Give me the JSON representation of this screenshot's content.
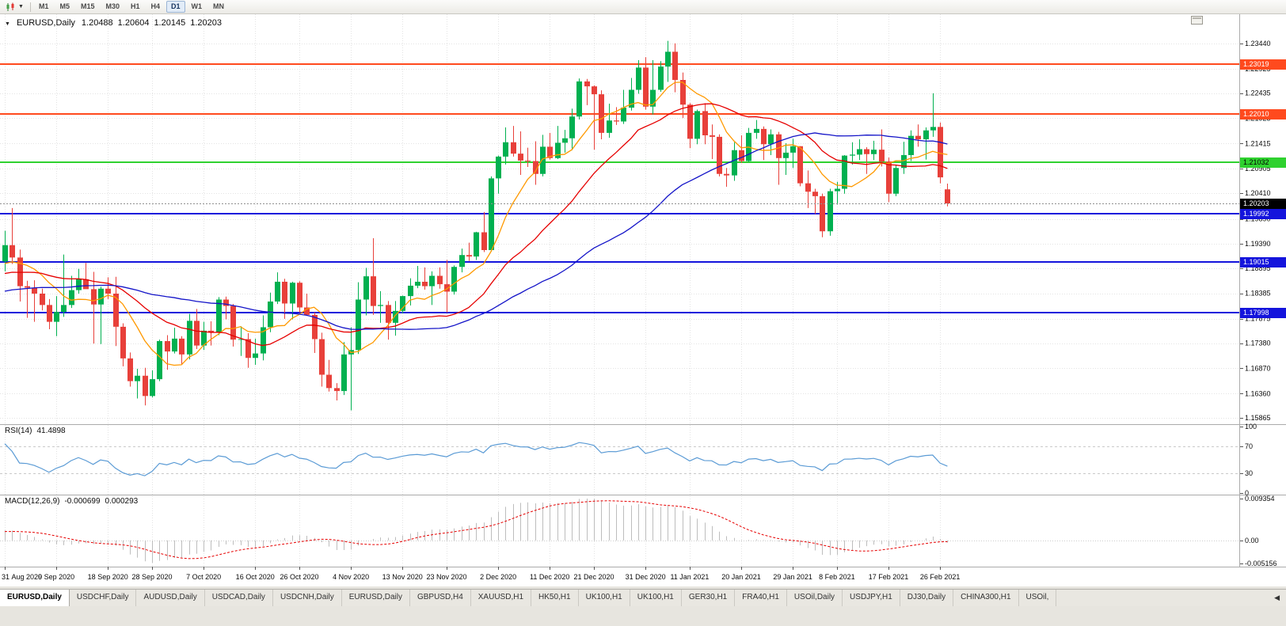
{
  "toolbar": {
    "timeframes": [
      "M1",
      "M5",
      "M15",
      "M30",
      "H1",
      "H4",
      "D1",
      "W1",
      "MN"
    ],
    "active_timeframe": "D1"
  },
  "chart": {
    "title": {
      "symbol": "EURUSD,Daily",
      "open": "1.20488",
      "high": "1.20604",
      "low": "1.20145",
      "close": "1.20203"
    },
    "price_axis_ticks": [
      "1.23440",
      "1.22925",
      "1.22435",
      "1.21925",
      "1.21415",
      "1.20905",
      "1.20410",
      "1.19890",
      "1.19390",
      "1.18895",
      "1.18385",
      "1.17875",
      "1.17380",
      "1.16870",
      "1.16360",
      "1.15865"
    ],
    "levels": [
      {
        "price": 1.23019,
        "label": "1.23019",
        "line_color": "#FF4A1E",
        "label_bg": "#FF4A1E",
        "label_text": "#FFFFFF"
      },
      {
        "price": 1.2201,
        "label": "1.22010",
        "line_color": "#FF4A1E",
        "label_bg": "#FF4A1E",
        "label_text": "#FFFFFF"
      },
      {
        "price": 1.21032,
        "label": "1.21032",
        "line_color": "#2FD12F",
        "label_bg": "#2FD12F",
        "label_text": "#000000"
      },
      {
        "price": 1.19992,
        "label": "1.19992",
        "line_color": "#1414DC",
        "label_bg": "#1414DC",
        "label_text": "#FFFFFF"
      },
      {
        "price": 1.19015,
        "label": "1.19015",
        "line_color": "#1414DC",
        "label_bg": "#1414DC",
        "label_text": "#FFFFFF"
      },
      {
        "price": 1.17998,
        "label": "1.17998",
        "line_color": "#1414DC",
        "label_bg": "#1414DC",
        "label_text": "#FFFFFF"
      }
    ],
    "current_price": {
      "value": 1.20203,
      "label": "1.20203",
      "label_bg": "#000000",
      "label_text": "#FFFFFF"
    },
    "x_tick_indices": [
      0,
      7,
      14,
      20,
      27,
      34,
      40,
      47,
      54,
      60,
      67,
      74,
      80,
      87,
      93,
      100,
      107,
      113,
      120,
      127
    ],
    "colors": {
      "bull": "#00B050",
      "bear": "#E8403A",
      "grid": "#E3E3E3",
      "ma_fast": "#FF9900",
      "ma_medium": "#E60000",
      "ma_slow": "#1414C8"
    }
  },
  "chart_data": {
    "type": "candlestick",
    "symbol": "EURUSD",
    "timeframe": "Daily",
    "columns": [
      "date",
      "open",
      "high",
      "low",
      "close"
    ],
    "y_range": [
      1.1574,
      1.239
    ],
    "candles": [
      [
        "31 Aug 2020",
        1.1903,
        1.1965,
        1.1883,
        1.1936
      ],
      [
        "1 Sep 2020",
        1.1936,
        1.2011,
        1.1898,
        1.1911
      ],
      [
        "2 Sep 2020",
        1.1911,
        1.1927,
        1.1822,
        1.1853
      ],
      [
        "3 Sep 2020",
        1.1853,
        1.1864,
        1.1789,
        1.185
      ],
      [
        "4 Sep 2020",
        1.185,
        1.1865,
        1.1781,
        1.1838
      ],
      [
        "7 Sep 2020",
        1.1838,
        1.1848,
        1.1804,
        1.1815
      ],
      [
        "8 Sep 2020",
        1.1815,
        1.1827,
        1.1766,
        1.1781
      ],
      [
        "9 Sep 2020",
        1.1781,
        1.1833,
        1.1752,
        1.1801
      ],
      [
        "10 Sep 2020",
        1.1801,
        1.1917,
        1.1791,
        1.1815
      ],
      [
        "11 Sep 2020",
        1.1815,
        1.1874,
        1.1809,
        1.1845
      ],
      [
        "14 Sep 2020",
        1.1845,
        1.1888,
        1.1838,
        1.1867
      ],
      [
        "15 Sep 2020",
        1.1867,
        1.19,
        1.185,
        1.1847
      ],
      [
        "16 Sep 2020",
        1.1847,
        1.1882,
        1.1737,
        1.1816
      ],
      [
        "17 Sep 2020",
        1.1816,
        1.1852,
        1.1736,
        1.1848
      ],
      [
        "18 Sep 2020",
        1.1848,
        1.1871,
        1.1827,
        1.1838
      ],
      [
        "21 Sep 2020",
        1.1838,
        1.1872,
        1.1732,
        1.1771
      ],
      [
        "22 Sep 2020",
        1.1771,
        1.1778,
        1.1691,
        1.1707
      ],
      [
        "23 Sep 2020",
        1.1707,
        1.1719,
        1.165,
        1.1661
      ],
      [
        "24 Sep 2020",
        1.1661,
        1.1686,
        1.1626,
        1.1672
      ],
      [
        "25 Sep 2020",
        1.1672,
        1.1688,
        1.1612,
        1.1631
      ],
      [
        "28 Sep 2020",
        1.1631,
        1.1683,
        1.1628,
        1.1665
      ],
      [
        "29 Sep 2020",
        1.1665,
        1.1745,
        1.1661,
        1.1742
      ],
      [
        "30 Sep 2020",
        1.1742,
        1.1754,
        1.1684,
        1.1721
      ],
      [
        "1 Oct 2020",
        1.1721,
        1.1769,
        1.1717,
        1.1747
      ],
      [
        "2 Oct 2020",
        1.1747,
        1.1752,
        1.1695,
        1.1715
      ],
      [
        "5 Oct 2020",
        1.1715,
        1.1797,
        1.1705,
        1.1783
      ],
      [
        "6 Oct 2020",
        1.1783,
        1.1807,
        1.1726,
        1.1733
      ],
      [
        "7 Oct 2020",
        1.1733,
        1.1781,
        1.1724,
        1.1763
      ],
      [
        "8 Oct 2020",
        1.1763,
        1.1782,
        1.1733,
        1.176
      ],
      [
        "9 Oct 2020",
        1.176,
        1.1831,
        1.1754,
        1.1826
      ],
      [
        "12 Oct 2020",
        1.1826,
        1.1832,
        1.1786,
        1.1813
      ],
      [
        "13 Oct 2020",
        1.1813,
        1.1817,
        1.1731,
        1.1745
      ],
      [
        "14 Oct 2020",
        1.1745,
        1.1772,
        1.1712,
        1.1746
      ],
      [
        "15 Oct 2020",
        1.1746,
        1.1758,
        1.1688,
        1.1708
      ],
      [
        "16 Oct 2020",
        1.1708,
        1.1747,
        1.1694,
        1.1717
      ],
      [
        "19 Oct 2020",
        1.1717,
        1.1794,
        1.1703,
        1.177
      ],
      [
        "20 Oct 2020",
        1.177,
        1.184,
        1.176,
        1.1822
      ],
      [
        "21 Oct 2020",
        1.1822,
        1.1881,
        1.1817,
        1.1862
      ],
      [
        "22 Oct 2020",
        1.1862,
        1.1868,
        1.1787,
        1.1818
      ],
      [
        "23 Oct 2020",
        1.1818,
        1.1862,
        1.1786,
        1.186
      ],
      [
        "26 Oct 2020",
        1.186,
        1.1863,
        1.18,
        1.181
      ],
      [
        "27 Oct 2020",
        1.181,
        1.1838,
        1.1793,
        1.1795
      ],
      [
        "28 Oct 2020",
        1.1795,
        1.18,
        1.1718,
        1.1746
      ],
      [
        "29 Oct 2020",
        1.1746,
        1.1759,
        1.165,
        1.1674
      ],
      [
        "30 Oct 2020",
        1.1674,
        1.1704,
        1.164,
        1.1647
      ],
      [
        "2 Nov 2020",
        1.1647,
        1.1657,
        1.1622,
        1.1641
      ],
      [
        "3 Nov 2020",
        1.1641,
        1.174,
        1.1633,
        1.1715
      ],
      [
        "4 Nov 2020",
        1.1715,
        1.177,
        1.1602,
        1.1724
      ],
      [
        "5 Nov 2020",
        1.1724,
        1.1861,
        1.1716,
        1.1826
      ],
      [
        "6 Nov 2020",
        1.1826,
        1.189,
        1.1794,
        1.1873
      ],
      [
        "9 Nov 2020",
        1.1873,
        1.195,
        1.1795,
        1.1813
      ],
      [
        "10 Nov 2020",
        1.1813,
        1.1843,
        1.1779,
        1.1815
      ],
      [
        "11 Nov 2020",
        1.1815,
        1.1823,
        1.1745,
        1.1779
      ],
      [
        "12 Nov 2020",
        1.1779,
        1.1823,
        1.1753,
        1.1803
      ],
      [
        "13 Nov 2020",
        1.1803,
        1.1834,
        1.1798,
        1.1833
      ],
      [
        "16 Nov 2020",
        1.1833,
        1.1869,
        1.1814,
        1.1854
      ],
      [
        "17 Nov 2020",
        1.1854,
        1.1894,
        1.1849,
        1.1862
      ],
      [
        "18 Nov 2020",
        1.1862,
        1.1891,
        1.1846,
        1.1853
      ],
      [
        "19 Nov 2020",
        1.1853,
        1.1883,
        1.1815,
        1.1874
      ],
      [
        "20 Nov 2020",
        1.1874,
        1.1891,
        1.1848,
        1.1857
      ],
      [
        "23 Nov 2020",
        1.1857,
        1.1906,
        1.18,
        1.1842
      ],
      [
        "24 Nov 2020",
        1.1842,
        1.1895,
        1.1836,
        1.1892
      ],
      [
        "25 Nov 2020",
        1.1892,
        1.1929,
        1.1881,
        1.1916
      ],
      [
        "26 Nov 2020",
        1.1916,
        1.1941,
        1.1904,
        1.1913
      ],
      [
        "27 Nov 2020",
        1.1913,
        1.1963,
        1.1906,
        1.1962
      ],
      [
        "30 Nov 2020",
        1.1962,
        1.2003,
        1.1922,
        1.1926
      ],
      [
        "1 Dec 2020",
        1.1926,
        1.2075,
        1.1923,
        1.2071
      ],
      [
        "2 Dec 2020",
        1.2071,
        1.2117,
        1.204,
        1.2115
      ],
      [
        "3 Dec 2020",
        1.2115,
        1.2174,
        1.2099,
        1.2144
      ],
      [
        "4 Dec 2020",
        1.2144,
        1.2177,
        1.2115,
        1.2121
      ],
      [
        "7 Dec 2020",
        1.2121,
        1.2166,
        1.2078,
        1.2107
      ],
      [
        "8 Dec 2020",
        1.2107,
        1.2133,
        1.2094,
        1.2106
      ],
      [
        "9 Dec 2020",
        1.2106,
        1.2146,
        1.2058,
        1.208
      ],
      [
        "10 Dec 2020",
        1.208,
        1.2159,
        1.2075,
        1.2135
      ],
      [
        "11 Dec 2020",
        1.2135,
        1.2163,
        1.2109,
        1.2112
      ],
      [
        "14 Dec 2020",
        1.2112,
        1.2177,
        1.211,
        1.2143
      ],
      [
        "15 Dec 2020",
        1.2143,
        1.2169,
        1.2123,
        1.2152
      ],
      [
        "16 Dec 2020",
        1.2152,
        1.2212,
        1.2128,
        1.2196
      ],
      [
        "17 Dec 2020",
        1.2196,
        1.2273,
        1.219,
        1.2267
      ],
      [
        "18 Dec 2020",
        1.2267,
        1.2272,
        1.2219,
        1.2257
      ],
      [
        "21 Dec 2020",
        1.2257,
        1.2259,
        1.2129,
        1.2241
      ],
      [
        "22 Dec 2020",
        1.2241,
        1.2249,
        1.215,
        1.2163
      ],
      [
        "23 Dec 2020",
        1.2163,
        1.2222,
        1.2153,
        1.2188
      ],
      [
        "24 Dec 2020",
        1.2188,
        1.2215,
        1.2179,
        1.2186
      ],
      [
        "28 Dec 2020",
        1.2186,
        1.225,
        1.2181,
        1.2214
      ],
      [
        "29 Dec 2020",
        1.2214,
        1.2274,
        1.2208,
        1.225
      ],
      [
        "30 Dec 2020",
        1.225,
        1.231,
        1.2242,
        1.2295
      ],
      [
        "31 Dec 2020",
        1.2295,
        1.2316,
        1.221,
        1.2216
      ],
      [
        "4 Jan 2021",
        1.2216,
        1.231,
        1.22,
        1.225
      ],
      [
        "5 Jan 2021",
        1.225,
        1.2308,
        1.2246,
        1.2297
      ],
      [
        "6 Jan 2021",
        1.2297,
        1.2349,
        1.2266,
        1.2327
      ],
      [
        "7 Jan 2021",
        1.2327,
        1.2344,
        1.2245,
        1.227
      ],
      [
        "8 Jan 2021",
        1.227,
        1.2285,
        1.2193,
        1.222
      ],
      [
        "11 Jan 2021",
        1.222,
        1.2223,
        1.2132,
        1.2151
      ],
      [
        "12 Jan 2021",
        1.2151,
        1.221,
        1.214,
        1.2207
      ],
      [
        "13 Jan 2021",
        1.2207,
        1.2223,
        1.214,
        1.2158
      ],
      [
        "14 Jan 2021",
        1.2158,
        1.218,
        1.211,
        1.2155
      ],
      [
        "15 Jan 2021",
        1.2155,
        1.216,
        1.2075,
        1.208
      ],
      [
        "18 Jan 2021",
        1.208,
        1.2092,
        1.2054,
        1.2077
      ],
      [
        "19 Jan 2021",
        1.2077,
        1.2144,
        1.2066,
        1.2128
      ],
      [
        "20 Jan 2021",
        1.2128,
        1.2158,
        1.2102,
        1.2106
      ],
      [
        "21 Jan 2021",
        1.2106,
        1.2173,
        1.2104,
        1.2163
      ],
      [
        "22 Jan 2021",
        1.2163,
        1.2189,
        1.2151,
        1.2171
      ],
      [
        "25 Jan 2021",
        1.2171,
        1.2176,
        1.2108,
        1.214
      ],
      [
        "26 Jan 2021",
        1.214,
        1.217,
        1.2118,
        1.216
      ],
      [
        "27 Jan 2021",
        1.216,
        1.2165,
        1.2058,
        1.2112
      ],
      [
        "28 Jan 2021",
        1.2112,
        1.2142,
        1.2078,
        1.2123
      ],
      [
        "29 Jan 2021",
        1.2123,
        1.2151,
        1.2092,
        1.2136
      ],
      [
        "1 Feb 2021",
        1.2136,
        1.2136,
        1.2055,
        1.2061
      ],
      [
        "2 Feb 2021",
        1.2061,
        1.2087,
        1.2011,
        1.2044
      ],
      [
        "3 Feb 2021",
        1.2044,
        1.205,
        1.1999,
        1.2035
      ],
      [
        "4 Feb 2021",
        1.2035,
        1.204,
        1.1952,
        1.1964
      ],
      [
        "5 Feb 2021",
        1.1964,
        1.205,
        1.1955,
        1.2045
      ],
      [
        "8 Feb 2021",
        1.2045,
        1.2064,
        1.2018,
        1.205
      ],
      [
        "9 Feb 2021",
        1.205,
        1.2118,
        1.204,
        1.2117
      ],
      [
        "10 Feb 2021",
        1.2117,
        1.2144,
        1.2099,
        1.2119
      ],
      [
        "11 Feb 2021",
        1.2119,
        1.215,
        1.2108,
        1.213
      ],
      [
        "12 Feb 2021",
        1.213,
        1.2134,
        1.208,
        1.212
      ],
      [
        "15 Feb 2021",
        1.212,
        1.2147,
        1.2108,
        1.2129
      ],
      [
        "16 Feb 2021",
        1.2129,
        1.217,
        1.2095,
        1.2105
      ],
      [
        "17 Feb 2021",
        1.2105,
        1.2113,
        1.2023,
        1.204
      ],
      [
        "18 Feb 2021",
        1.204,
        1.2097,
        1.2035,
        1.2092
      ],
      [
        "19 Feb 2021",
        1.2092,
        1.2145,
        1.208,
        1.2118
      ],
      [
        "22 Feb 2021",
        1.2118,
        1.2168,
        1.2106,
        1.2157
      ],
      [
        "23 Feb 2021",
        1.2157,
        1.218,
        1.2135,
        1.215
      ],
      [
        "24 Feb 2021",
        1.215,
        1.2174,
        1.2109,
        1.2168
      ],
      [
        "25 Feb 2021",
        1.2168,
        1.2243,
        1.2155,
        1.2175
      ],
      [
        "26 Feb 2021",
        1.2175,
        1.2184,
        1.2061,
        1.2073
      ],
      [
        "1 Mar 2021",
        1.20488,
        1.20604,
        1.20145,
        1.20203
      ]
    ],
    "moving_averages": [
      {
        "name": "fast",
        "period": 8,
        "color": "#FF9900"
      },
      {
        "name": "medium",
        "period": 21,
        "color": "#E60000"
      },
      {
        "name": "slow",
        "period": 45,
        "color": "#1414C8"
      }
    ]
  },
  "rsi": {
    "name": "RSI(14)",
    "value": "41.4898",
    "period": 14,
    "scale_ticks": [
      "100",
      "70",
      "30",
      "0"
    ],
    "levels": [
      70,
      30
    ],
    "range": [
      0,
      100
    ],
    "color": "#5B9BD5"
  },
  "macd": {
    "name": "MACD(12,26,9)",
    "value_main": "-0.000699",
    "value_signal": "0.000293",
    "fast": 12,
    "slow": 26,
    "signal": 9,
    "scale_ticks": [
      "0.009354",
      "0.00",
      "-0.005156"
    ],
    "histogram_color": "#BDBDBD",
    "signal_color": "#E60000"
  },
  "tabs": {
    "active_index": 0,
    "scroll_left_glyph": "◀",
    "items": [
      "EURUSD,Daily",
      "USDCHF,Daily",
      "AUDUSD,Daily",
      "USDCAD,Daily",
      "USDCNH,Daily",
      "EURUSD,Daily",
      "GBPUSD,H4",
      "XAUUSD,H1",
      "HK50,H1",
      "UK100,H1",
      "UK100,H1",
      "GER30,H1",
      "FRA40,H1",
      "USOil,Daily",
      "USDJPY,H1",
      "DJ30,Daily",
      "CHINA300,H1",
      "USOil,"
    ]
  }
}
